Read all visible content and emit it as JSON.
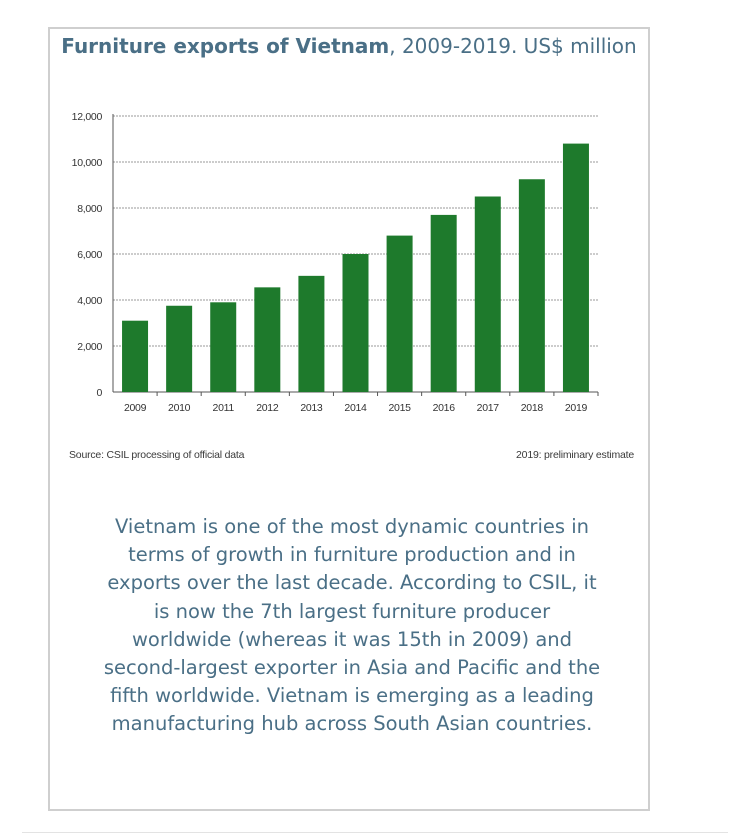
{
  "title_bold": "Furniture exports of Vietnam",
  "title_rest": ", 2009-2019. US$ million",
  "chart_data": {
    "type": "bar",
    "categories": [
      "2009",
      "2010",
      "2011",
      "2012",
      "2013",
      "2014",
      "2015",
      "2016",
      "2017",
      "2018",
      "2019"
    ],
    "values": [
      3100,
      3750,
      3900,
      4550,
      5050,
      6000,
      6800,
      7700,
      8500,
      9250,
      10800
    ],
    "ylim": [
      0,
      12000
    ],
    "yticks": [
      "0",
      "2,000",
      "4,000",
      "6,000",
      "8,000",
      "10,000",
      "12,000"
    ],
    "grid": true,
    "bar_color": "#1e7a2c"
  },
  "source_note": "Source: CSIL processing of official data",
  "estimate_note": "2019: preliminary estimate",
  "paragraph": "Vietnam is one of the most dynamic countries in terms of growth in furniture production and in exports over the last decade. According to CSIL, it is now the 7th largest furniture producer worldwide (whereas it was 15th in 2009) and second-largest exporter in Asia and Pacific and the fifth worldwide. Vietnam is emerging as a leading manufacturing hub across South Asian countries."
}
